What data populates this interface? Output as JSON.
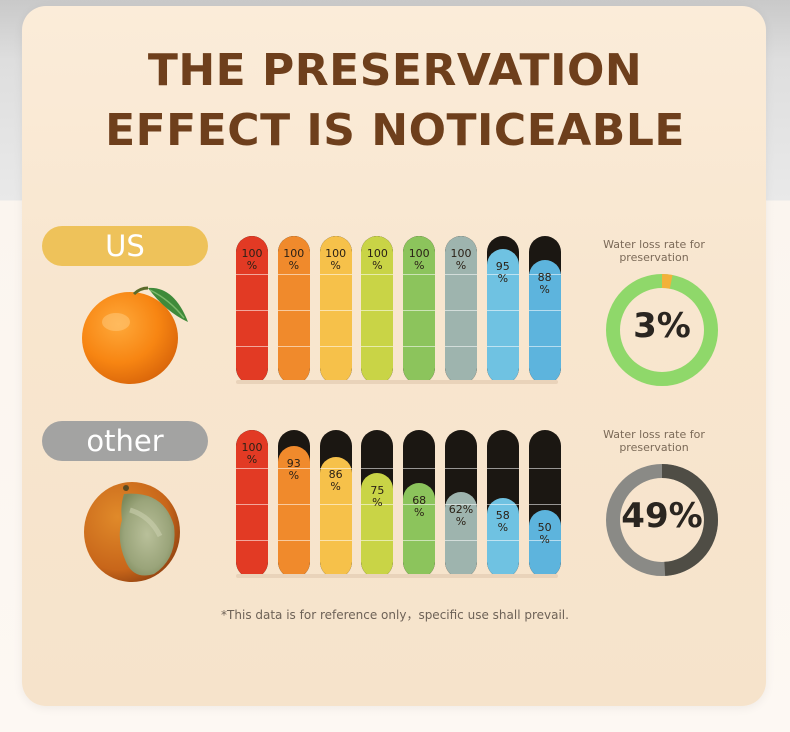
{
  "title_line1": "THE PRESERVATION",
  "title_line2": "EFFECT IS NOTICEABLE",
  "footnote": "*This data is for reference only，specific use shall prevail.",
  "chart_data": [
    {
      "type": "bar",
      "series_label": "US",
      "values": [
        100,
        100,
        100,
        100,
        100,
        100,
        95,
        88
      ],
      "value_labels": [
        "100\n%",
        "100\n%",
        "100\n%",
        "100\n%",
        "100\n%",
        "100\n%",
        "95\n%",
        "88\n%"
      ],
      "colors": [
        "#e23a24",
        "#f08a2c",
        "#f6c14a",
        "#c9d446",
        "#8cc45c",
        "#9eb4ae",
        "#6fc2e2",
        "#5db4dd"
      ],
      "ylim": [
        0,
        100
      ]
    },
    {
      "type": "bar",
      "series_label": "other",
      "values": [
        100,
        93,
        86,
        75,
        68,
        62,
        58,
        50
      ],
      "value_labels": [
        "100\n%",
        "93\n%",
        "86\n%",
        "75\n%",
        "68\n%",
        "62%\n%",
        "58\n%",
        "50\n%"
      ],
      "colors": [
        "#e23a24",
        "#f08a2c",
        "#f6c14a",
        "#c9d446",
        "#8cc45c",
        "#9eb4ae",
        "#6fc2e2",
        "#5db4dd"
      ],
      "ylim": [
        0,
        100
      ]
    },
    {
      "type": "pie",
      "label": "Water loss rate for preservation",
      "value_text": "3%",
      "value": 3,
      "colors": {
        "main": "#8fd86a",
        "part": "#f3b13a"
      }
    },
    {
      "type": "pie",
      "label": "Water loss rate for preservation",
      "value_text": "49%",
      "value": 49,
      "colors": {
        "main": "#8a8a86",
        "part": "#4f4d45"
      }
    }
  ]
}
